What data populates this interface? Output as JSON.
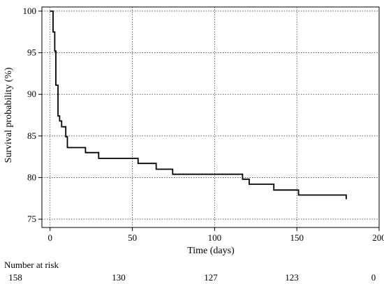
{
  "chart_data": {
    "type": "line",
    "xlabel": "Time (days)",
    "ylabel": "Survival probability (%)",
    "xlim": [
      -5,
      200
    ],
    "ylim": [
      74,
      100.5
    ],
    "xticks": [
      0,
      50,
      100,
      150,
      200
    ],
    "yticks": [
      75,
      80,
      85,
      90,
      95,
      100
    ],
    "grid": true,
    "series": [
      {
        "steps": [
          [
            0,
            100
          ],
          [
            1.8,
            97.5
          ],
          [
            2.8,
            95.2
          ],
          [
            3.5,
            91.1
          ],
          [
            4.8,
            87.4
          ],
          [
            5.8,
            86.8
          ],
          [
            7.0,
            86.1
          ],
          [
            9.5,
            84.9
          ],
          [
            10.5,
            83.6
          ],
          [
            21.5,
            83.0
          ],
          [
            29.5,
            82.3
          ],
          [
            53.5,
            81.7
          ],
          [
            64.5,
            81.0
          ],
          [
            74.5,
            80.4
          ],
          [
            117,
            79.8
          ],
          [
            121,
            79.2
          ],
          [
            136,
            78.5
          ],
          [
            151,
            77.9
          ],
          [
            180,
            77.4
          ]
        ]
      }
    ],
    "risk_table": {
      "title": "Number at risk",
      "values": [
        "158",
        "130",
        "127",
        "123",
        "0"
      ]
    }
  }
}
